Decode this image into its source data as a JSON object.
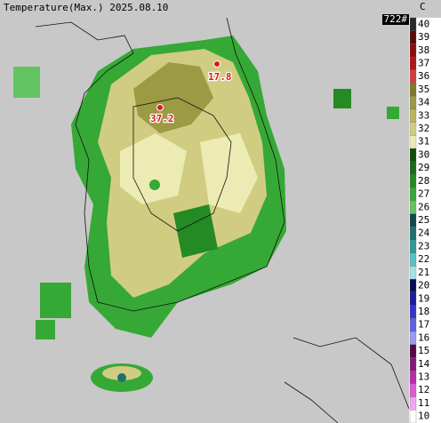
{
  "header": {
    "title": "Temperature(Max.) 2025.08.10",
    "code": "722#",
    "unit": "C"
  },
  "scale": {
    "labels": [
      40,
      39,
      38,
      37,
      36,
      35,
      34,
      33,
      32,
      31,
      30,
      29,
      28,
      27,
      26,
      25,
      24,
      23,
      22,
      21,
      20,
      19,
      18,
      17,
      16,
      15,
      14,
      13,
      12,
      11,
      10
    ],
    "colors": [
      "#2a2a2a",
      "#5a0a0a",
      "#8a1010",
      "#b01818",
      "#d04040",
      "#7e7a2e",
      "#9c9a42",
      "#b8b55e",
      "#d0cd82",
      "#ecebb4",
      "#0e4e0e",
      "#186e18",
      "#248a24",
      "#36a836",
      "#62c462",
      "#124848",
      "#1e7070",
      "#309a9a",
      "#5cc0c0",
      "#a4e2e2",
      "#0c0c56",
      "#1c1c9a",
      "#3434cc",
      "#6060e0",
      "#9a9af0",
      "#500c44",
      "#86187a",
      "#b82caa",
      "#dc5cd4",
      "#f0a6ee",
      "#ffffff"
    ]
  },
  "stations": [
    {
      "label": "17.8"
    },
    {
      "label": "37.2"
    }
  ]
}
